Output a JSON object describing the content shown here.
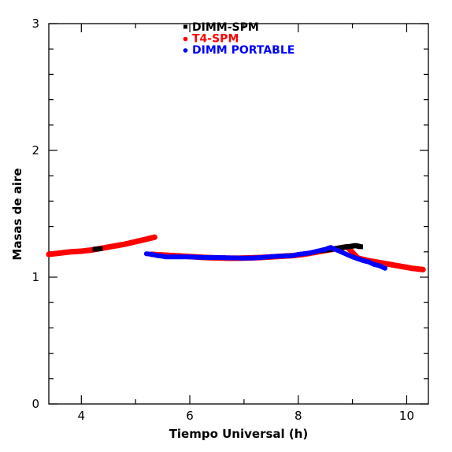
{
  "chart_data": {
    "type": "scatter",
    "xlabel": "Tiempo Universal (h)",
    "ylabel": "Masas de aire",
    "xlim": [
      3.4,
      10.4
    ],
    "ylim": [
      0,
      3
    ],
    "xticks": [
      4,
      6,
      8,
      10
    ],
    "yticks": [
      0,
      1,
      2,
      3
    ],
    "legend_position": "top-center",
    "series": [
      {
        "name": "DIMM-SPM",
        "color": "#000000",
        "marker": "square",
        "x": [
          4.25,
          4.35,
          8.45,
          8.6,
          8.75,
          8.9,
          9.0,
          9.05,
          9.1,
          9.15
        ],
        "y": [
          1.22,
          1.225,
          1.21,
          1.22,
          1.23,
          1.24,
          1.245,
          1.25,
          1.245,
          1.24
        ]
      },
      {
        "name": "T4-SPM",
        "color": "#ff0000",
        "marker": "circle",
        "x": [
          3.4,
          3.6,
          3.8,
          4.0,
          4.2,
          4.4,
          4.6,
          4.8,
          5.0,
          5.2,
          5.35,
          5.3,
          5.5,
          5.7,
          5.9,
          6.1,
          6.3,
          6.5,
          6.7,
          6.9,
          7.1,
          7.3,
          7.5,
          7.7,
          7.9,
          8.1,
          8.3,
          8.5,
          8.7,
          8.9,
          9.1,
          9.3,
          9.5,
          9.7,
          9.9,
          10.1,
          10.3
        ],
        "y": [
          1.18,
          1.19,
          1.2,
          1.205,
          1.215,
          1.23,
          1.245,
          1.26,
          1.28,
          1.3,
          1.315,
          1.18,
          1.175,
          1.17,
          1.165,
          1.16,
          1.155,
          1.152,
          1.15,
          1.15,
          1.152,
          1.155,
          1.16,
          1.165,
          1.17,
          1.18,
          1.195,
          1.21,
          1.225,
          1.24,
          1.15,
          1.13,
          1.115,
          1.1,
          1.085,
          1.07,
          1.06
        ]
      },
      {
        "name": "DIMM PORTABLE",
        "color": "#0000ff",
        "marker": "circle",
        "x": [
          5.2,
          5.3,
          5.4,
          5.5,
          5.55,
          6.0,
          6.1,
          6.3,
          6.5,
          7.0,
          7.2,
          7.4,
          7.5,
          7.6,
          7.9,
          8.0,
          8.2,
          8.3,
          8.4,
          8.5,
          8.6,
          9.0,
          9.1,
          9.2,
          9.3,
          9.4,
          9.5,
          9.6
        ],
        "y": [
          1.185,
          1.18,
          1.17,
          1.165,
          1.16,
          1.16,
          1.158,
          1.155,
          1.155,
          1.15,
          1.152,
          1.158,
          1.162,
          1.165,
          1.17,
          1.18,
          1.19,
          1.2,
          1.21,
          1.22,
          1.235,
          1.16,
          1.145,
          1.13,
          1.12,
          1.1,
          1.09,
          1.07
        ]
      }
    ]
  }
}
